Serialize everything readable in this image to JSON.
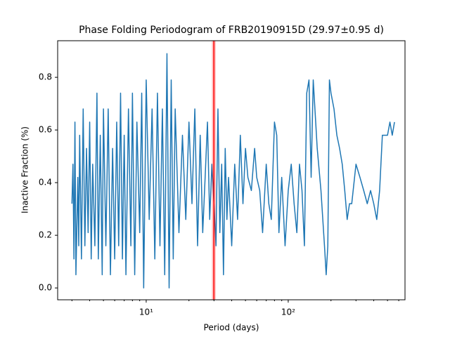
{
  "chart_data": {
    "type": "line",
    "title": "Phase Folding Periodogram of FRB20190915D (29.97±0.95 d)",
    "xlabel": "Period (days)",
    "ylabel": "Inactive Fraction (%)",
    "xscale": "log",
    "xlim": [
      2.38,
      664
    ],
    "ylim": [
      -0.045,
      0.939
    ],
    "xticks": [
      {
        "value": 10,
        "label": "10¹"
      },
      {
        "value": 100,
        "label": "10²"
      }
    ],
    "xminor_ticks": [
      3,
      4,
      5,
      6,
      7,
      8,
      9,
      20,
      30,
      40,
      50,
      60,
      70,
      80,
      90,
      200,
      300,
      400,
      500,
      600
    ],
    "yticks": [
      {
        "value": 0,
        "label": "0.0"
      },
      0.2,
      0.4,
      0.6,
      0.8
    ],
    "color": "#1f77b4",
    "vline": {
      "x": 29.97,
      "err": 0.95,
      "color": "#ff0000"
    },
    "x": [
      3.0,
      3.05,
      3.1,
      3.15,
      3.2,
      3.3,
      3.35,
      3.4,
      3.5,
      3.6,
      3.7,
      3.8,
      3.9,
      4.0,
      4.1,
      4.2,
      4.35,
      4.5,
      4.6,
      4.75,
      4.9,
      5.0,
      5.2,
      5.4,
      5.6,
      5.8,
      6.0,
      6.2,
      6.4,
      6.6,
      6.8,
      7.0,
      7.2,
      7.5,
      7.8,
      8.0,
      8.3,
      8.6,
      9.0,
      9.3,
      9.6,
      10.0,
      10.5,
      11,
      11.5,
      12,
      12.5,
      13,
      13.5,
      14,
      14.5,
      15,
      15.5,
      16,
      17,
      18,
      19,
      20,
      21,
      22,
      23,
      24,
      25,
      26,
      27,
      28,
      29,
      30,
      31,
      32,
      33,
      34,
      35,
      36,
      37,
      38,
      40,
      42,
      44,
      46,
      48,
      50,
      52,
      55,
      58,
      60,
      63,
      66,
      70,
      73,
      76,
      80,
      83,
      86,
      90,
      95,
      100,
      105,
      110,
      115,
      120,
      125,
      130,
      135,
      140,
      145,
      150,
      160,
      170,
      180,
      185,
      190,
      195,
      200,
      210,
      220,
      230,
      240,
      250,
      260,
      270,
      280,
      300,
      320,
      340,
      360,
      380,
      400,
      420,
      440,
      460,
      480,
      500,
      520,
      540,
      560
    ],
    "values": [
      0.32,
      0.47,
      0.11,
      0.63,
      0.05,
      0.42,
      0.16,
      0.58,
      0.11,
      0.68,
      0.16,
      0.53,
      0.21,
      0.63,
      0.11,
      0.47,
      0.16,
      0.74,
      0.11,
      0.58,
      0.05,
      0.68,
      0.16,
      0.68,
      0.05,
      0.53,
      0.11,
      0.63,
      0.16,
      0.74,
      0.11,
      0.58,
      0.05,
      0.68,
      0.16,
      0.74,
      0.05,
      0.63,
      0.21,
      0.74,
      0.0,
      0.79,
      0.26,
      0.68,
      0.11,
      0.74,
      0.16,
      0.68,
      0.05,
      0.89,
      0.0,
      0.79,
      0.11,
      0.68,
      0.21,
      0.58,
      0.26,
      0.63,
      0.32,
      0.68,
      0.16,
      0.58,
      0.21,
      0.42,
      0.63,
      0.26,
      0.47,
      0.32,
      0.16,
      0.68,
      0.21,
      0.47,
      0.05,
      0.53,
      0.26,
      0.42,
      0.16,
      0.47,
      0.26,
      0.58,
      0.32,
      0.53,
      0.42,
      0.37,
      0.53,
      0.42,
      0.37,
      0.21,
      0.47,
      0.32,
      0.26,
      0.63,
      0.58,
      0.21,
      0.42,
      0.16,
      0.37,
      0.47,
      0.32,
      0.21,
      0.47,
      0.37,
      0.16,
      0.74,
      0.79,
      0.42,
      0.79,
      0.53,
      0.37,
      0.16,
      0.05,
      0.16,
      0.79,
      0.74,
      0.68,
      0.58,
      0.53,
      0.47,
      0.37,
      0.26,
      0.32,
      0.32,
      0.47,
      0.42,
      0.37,
      0.32,
      0.37,
      0.32,
      0.26,
      0.37,
      0.58,
      0.58,
      0.58,
      0.63,
      0.58,
      0.63
    ]
  }
}
